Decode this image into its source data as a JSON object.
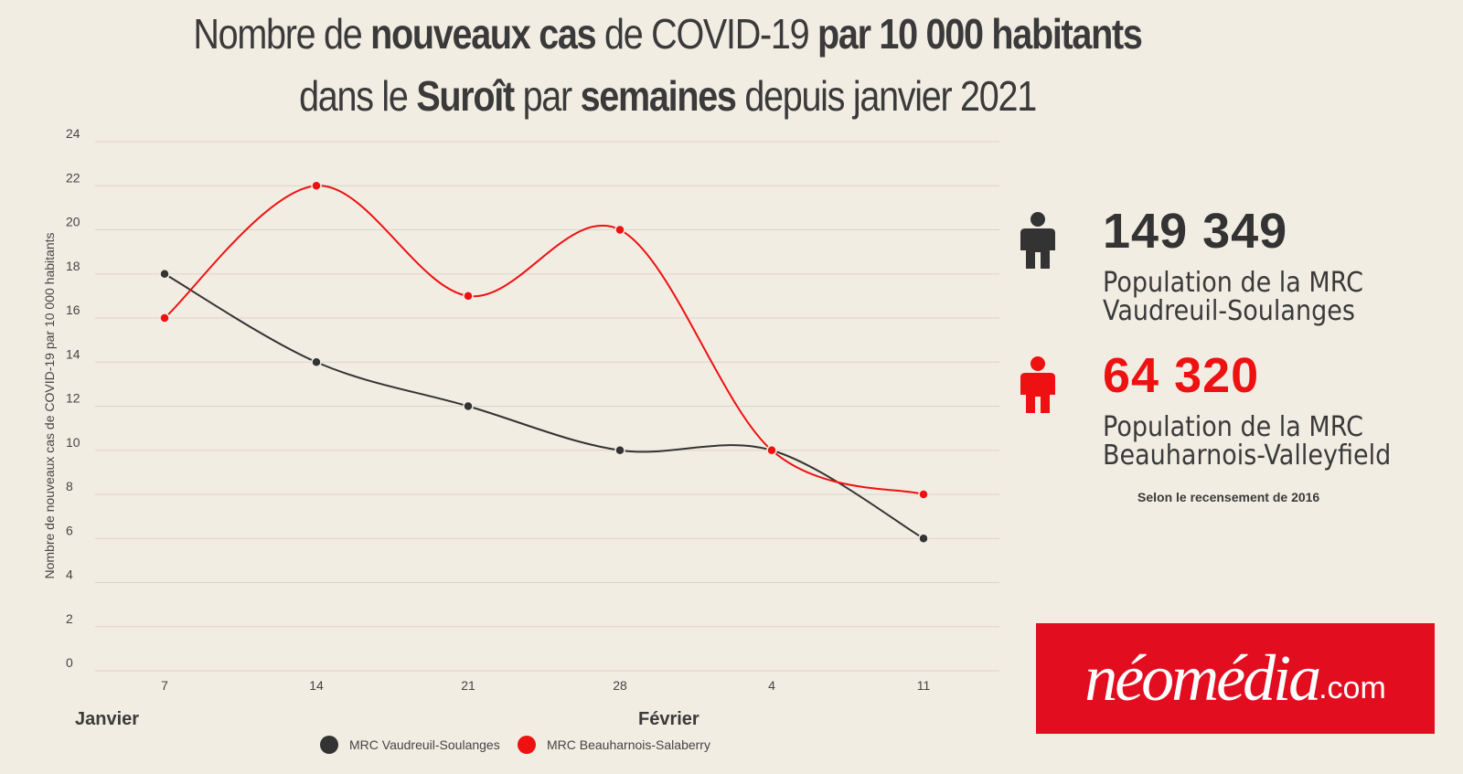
{
  "title": {
    "line1": [
      {
        "t": "Nombre de ",
        "b": false
      },
      {
        "t": "nouveaux cas",
        "b": true
      },
      {
        "t": " de COVID-19 ",
        "b": false
      },
      {
        "t": "par 10 000 habitants",
        "b": true
      }
    ],
    "line2": [
      {
        "t": "dans le ",
        "b": false
      },
      {
        "t": "Suroît",
        "b": true
      },
      {
        "t": " par ",
        "b": false
      },
      {
        "t": "semaines",
        "b": true
      },
      {
        "t": " depuis janvier 2021",
        "b": false
      }
    ]
  },
  "chart_data": {
    "type": "line",
    "categories": [
      "7",
      "14",
      "21",
      "28",
      "4",
      "11"
    ],
    "month_labels": [
      "Janvier",
      "Février"
    ],
    "ylabel": "Nombre de nouveaux cas de COVID-19 par 10 000 habitants",
    "xlabel": "",
    "ylim": [
      0,
      24
    ],
    "yticks": [
      0,
      2,
      4,
      6,
      8,
      10,
      12,
      14,
      16,
      18,
      20,
      22,
      24
    ],
    "grid": true,
    "smooth": true,
    "legend_position": "bottom",
    "series": [
      {
        "name": "MRC Vaudreuil-Soulanges",
        "color": "#333333",
        "values": [
          18,
          14,
          12,
          10,
          10,
          6
        ]
      },
      {
        "name": "MRC Beauharnois-Salaberry",
        "color": "#ee1111",
        "values": [
          16,
          22,
          17,
          20,
          10,
          8
        ]
      }
    ]
  },
  "stats": [
    {
      "value": "149 349",
      "label_line1": "Population de la MRC",
      "label_line2": "Vaudreuil-Soulanges",
      "color": "#333333",
      "icon": "person-icon"
    },
    {
      "value": "64 320",
      "label_line1": "Population de la MRC",
      "label_line2": "Beauharnois-Valleyfield",
      "color": "#ee1111",
      "icon": "person-icon"
    }
  ],
  "note": "Selon le recensement de 2016",
  "logo": {
    "main": "néomédia",
    "domain": ".com",
    "bg_color": "#e30d20"
  }
}
